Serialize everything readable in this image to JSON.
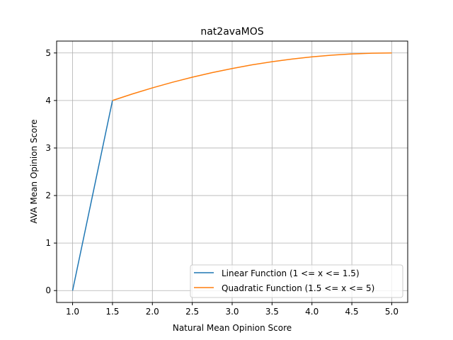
{
  "chart_data": {
    "type": "line",
    "title": "nat2avaMOS",
    "xlabel": "Natural Mean Opinion Score",
    "ylabel": "AVA Mean Opinion Score",
    "xlim": [
      0.8,
      5.2
    ],
    "ylim": [
      -0.25,
      5.25
    ],
    "xticks": [
      "1.0",
      "1.5",
      "2.0",
      "2.5",
      "3.0",
      "3.5",
      "4.0",
      "4.5",
      "5.0"
    ],
    "yticks": [
      "0",
      "1",
      "2",
      "3",
      "4",
      "5"
    ],
    "grid": true,
    "legend_position": "lower-right",
    "series": [
      {
        "name": "Linear Function (1 <= x <= 1.5)",
        "color": "#1f77b4",
        "x": [
          1.0,
          1.5
        ],
        "y": [
          0,
          4
        ]
      },
      {
        "name": "Quadratic Function (1.5 <= x <= 5)",
        "color": "#ff7f0e",
        "x": [
          1.5,
          1.75,
          2.0,
          2.25,
          2.5,
          2.75,
          3.0,
          3.25,
          3.5,
          3.75,
          4.0,
          4.25,
          4.5,
          4.75,
          5.0
        ],
        "y": [
          4.0,
          4.138,
          4.265,
          4.383,
          4.49,
          4.587,
          4.673,
          4.75,
          4.816,
          4.872,
          4.918,
          4.954,
          4.98,
          4.995,
          5.0
        ]
      }
    ]
  }
}
